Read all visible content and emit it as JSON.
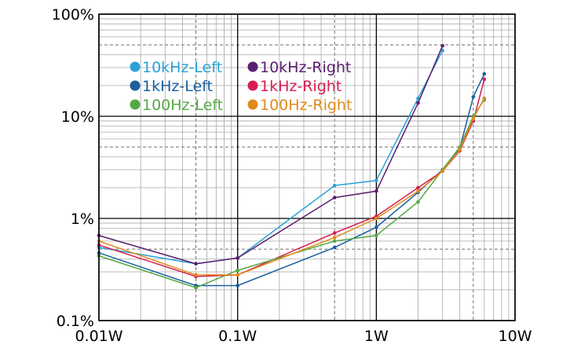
{
  "chart_data": {
    "type": "line",
    "title": "",
    "xlabel": "",
    "ylabel": "",
    "x_scale": "log",
    "y_scale": "log",
    "xlim": [
      0.01,
      10
    ],
    "ylim": [
      0.1,
      100
    ],
    "grid": true,
    "legend_position": "top-left",
    "x_tick_labels": [
      "0.01W",
      "0.1W",
      "1W",
      "10W"
    ],
    "y_tick_labels": [
      "0.1%",
      "1%",
      "10%",
      "100%"
    ],
    "x_ticks": [
      0.01,
      0.1,
      1,
      10
    ],
    "y_ticks": [
      0.1,
      1,
      10,
      100
    ],
    "series": [
      {
        "name": "10kHz-Left",
        "color": "#2aa2d8",
        "x": [
          0.01,
          0.05,
          0.1,
          0.5,
          1,
          2,
          3
        ],
        "y": [
          0.52,
          0.36,
          0.41,
          2.1,
          2.35,
          15.0,
          44.0
        ]
      },
      {
        "name": "10kHz-Right",
        "color": "#5a1f6e",
        "x": [
          0.01,
          0.05,
          0.1,
          0.5,
          1,
          2,
          3
        ],
        "y": [
          0.68,
          0.36,
          0.41,
          1.6,
          1.85,
          13.5,
          49.0
        ]
      },
      {
        "name": "1kHz-Left",
        "color": "#1b5f9e",
        "x": [
          0.01,
          0.05,
          0.1,
          0.5,
          1,
          2,
          3,
          4,
          5,
          6
        ],
        "y": [
          0.46,
          0.22,
          0.22,
          0.52,
          0.82,
          1.8,
          3.0,
          4.9,
          15.5,
          26.0
        ]
      },
      {
        "name": "1kHz-Right",
        "color": "#d61f4f",
        "x": [
          0.01,
          0.05,
          0.1,
          0.5,
          1,
          2,
          3,
          4,
          5,
          6
        ],
        "y": [
          0.55,
          0.27,
          0.28,
          0.72,
          1.05,
          2.0,
          2.9,
          4.6,
          9.0,
          23.0
        ]
      },
      {
        "name": "100Hz-Left",
        "color": "#54a844",
        "x": [
          0.01,
          0.05,
          0.1,
          0.5,
          1,
          2,
          3,
          4,
          5,
          6
        ],
        "y": [
          0.43,
          0.21,
          0.31,
          0.6,
          0.68,
          1.45,
          3.0,
          5.0,
          10.0,
          14.5
        ]
      },
      {
        "name": "100Hz-Right",
        "color": "#e08a1e",
        "x": [
          0.01,
          0.05,
          0.1,
          0.5,
          1,
          2,
          3,
          4,
          5,
          6
        ],
        "y": [
          0.6,
          0.28,
          0.28,
          0.65,
          1.0,
          1.85,
          2.9,
          4.7,
          9.5,
          15.0
        ]
      }
    ]
  }
}
